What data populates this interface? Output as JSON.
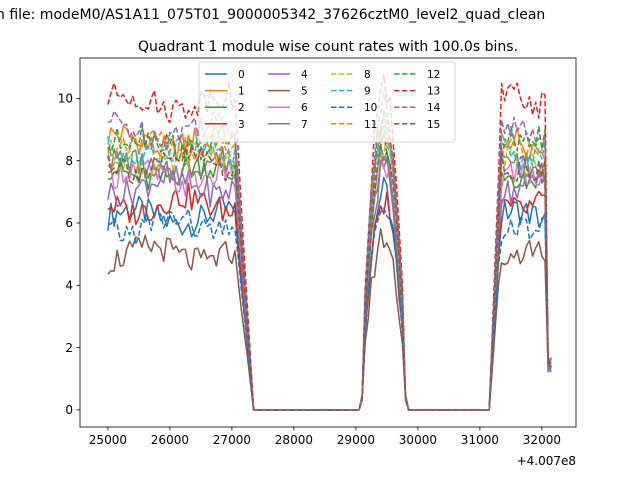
{
  "figure": {
    "suptitle": "n file: modeM0/AS1A11_075T01_9000005342_37626cztM0_level2_quad_clean"
  },
  "chart_data": {
    "type": "line",
    "title": "Quadrant 1 module wise count rates with 100.0s bins.",
    "xlabel": "",
    "ylabel": "",
    "x_offset_label": "+4.007e8",
    "xlim": [
      24550,
      32550
    ],
    "ylim": [
      -0.55,
      11.3
    ],
    "xticks": [
      25000,
      26000,
      27000,
      28000,
      29000,
      30000,
      31000,
      32000
    ],
    "yticks": [
      0,
      2,
      4,
      6,
      8,
      10
    ],
    "legend": {
      "placement": "top-center",
      "ncol": 4
    },
    "segments": [
      {
        "start": 25000,
        "end": 27350
      },
      {
        "start": 27350,
        "end": 29050
      },
      {
        "start": 29050,
        "end": 29850
      },
      {
        "start": 29850,
        "end": 31150
      },
      {
        "start": 31150,
        "end": 32150
      }
    ],
    "series": [
      {
        "name": "0",
        "color": "#1f77b4",
        "dash": "solid",
        "base": 6.2,
        "peak": 6.7
      },
      {
        "name": "1",
        "color": "#ff7f0e",
        "dash": "solid",
        "base": 8.6,
        "peak": 8.9
      },
      {
        "name": "2",
        "color": "#2ca02c",
        "dash": "solid",
        "base": 7.6,
        "peak": 7.8
      },
      {
        "name": "3",
        "color": "#d62728",
        "dash": "solid",
        "base": 6.6,
        "peak": 6.4
      },
      {
        "name": "4",
        "color": "#9467bd",
        "dash": "solid",
        "base": 7.2,
        "peak": 7.5
      },
      {
        "name": "5",
        "color": "#8c564b",
        "dash": "solid",
        "base": 5.0,
        "peak": 5.3
      },
      {
        "name": "6",
        "color": "#e377c2",
        "dash": "solid",
        "base": 7.5,
        "peak": 7.6
      },
      {
        "name": "7",
        "color": "#7f7f7f",
        "dash": "solid",
        "base": 7.8,
        "peak": 7.3
      },
      {
        "name": "8",
        "color": "#bcbd22",
        "dash": "dashed",
        "base": 8.0,
        "peak": 8.2
      },
      {
        "name": "9",
        "color": "#17becf",
        "dash": "dashed",
        "base": 8.3,
        "peak": 8.5
      },
      {
        "name": "10",
        "color": "#1f77b4",
        "dash": "dashed",
        "base": 5.9,
        "peak": 6.2
      },
      {
        "name": "11",
        "color": "#ff7f0e",
        "dash": "dashed",
        "base": 8.4,
        "peak": 8.7
      },
      {
        "name": "12",
        "color": "#2ca02c",
        "dash": "dashed",
        "base": 8.6,
        "peak": 8.9
      },
      {
        "name": "13",
        "color": "#d62728",
        "dash": "dashed",
        "base": 9.9,
        "peak": 10.0
      },
      {
        "name": "14",
        "color": "#9467bd",
        "dash": "dashed",
        "base": 9.0,
        "peak": 9.3
      },
      {
        "name": "15",
        "color": "#8c564b",
        "dash": "dashed",
        "base": 7.9,
        "peak": 8.0
      }
    ]
  }
}
